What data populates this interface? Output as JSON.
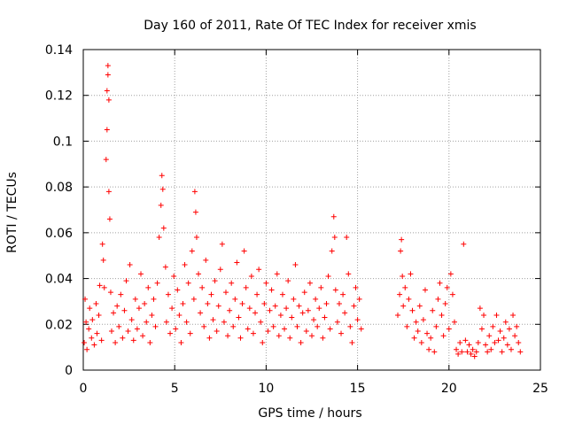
{
  "chart_data": {
    "type": "scatter",
    "title": "Day 160 of 2011, Rate Of TEC Index for receiver xmis",
    "xlabel": "GPS time / hours",
    "ylabel": "ROTI / TECUs",
    "xlim": [
      0,
      25
    ],
    "ylim": [
      0,
      0.14
    ],
    "x_ticks": [
      0,
      5,
      10,
      15,
      20,
      25
    ],
    "x_tick_labels": [
      "0",
      "5",
      "10",
      "15",
      "20",
      "25"
    ],
    "y_ticks": [
      0,
      0.02,
      0.04,
      0.06,
      0.08,
      0.1,
      0.12,
      0.14
    ],
    "y_tick_labels": [
      "0",
      "0.02",
      "0.04",
      "0.06",
      "0.08",
      "0.1",
      "0.12",
      "0.14"
    ],
    "grid": true,
    "marker": "+",
    "color": "#ff0000",
    "series": [
      {
        "points": [
          [
            0.05,
            0.012
          ],
          [
            0.1,
            0.031
          ],
          [
            0.15,
            0.021
          ],
          [
            0.2,
            0.009
          ],
          [
            0.3,
            0.018
          ],
          [
            0.35,
            0.027
          ],
          [
            0.45,
            0.014
          ],
          [
            0.5,
            0.022
          ],
          [
            0.6,
            0.011
          ],
          [
            0.7,
            0.029
          ],
          [
            0.75,
            0.016
          ],
          [
            0.85,
            0.024
          ],
          [
            0.9,
            0.037
          ],
          [
            1.0,
            0.013
          ],
          [
            1.05,
            0.055
          ],
          [
            1.1,
            0.048
          ],
          [
            1.15,
            0.036
          ],
          [
            1.25,
            0.092
          ],
          [
            1.3,
            0.105
          ],
          [
            1.3,
            0.122
          ],
          [
            1.35,
            0.133
          ],
          [
            1.35,
            0.129
          ],
          [
            1.4,
            0.118
          ],
          [
            1.4,
            0.078
          ],
          [
            1.45,
            0.066
          ],
          [
            1.5,
            0.034
          ],
          [
            1.55,
            0.017
          ],
          [
            1.65,
            0.025
          ],
          [
            1.75,
            0.012
          ],
          [
            1.85,
            0.028
          ],
          [
            1.95,
            0.019
          ],
          [
            2.05,
            0.033
          ],
          [
            2.15,
            0.014
          ],
          [
            2.25,
            0.026
          ],
          [
            2.35,
            0.039
          ],
          [
            2.45,
            0.017
          ],
          [
            2.55,
            0.046
          ],
          [
            2.65,
            0.022
          ],
          [
            2.75,
            0.013
          ],
          [
            2.85,
            0.031
          ],
          [
            2.95,
            0.018
          ],
          [
            3.05,
            0.027
          ],
          [
            3.15,
            0.042
          ],
          [
            3.25,
            0.015
          ],
          [
            3.35,
            0.029
          ],
          [
            3.45,
            0.021
          ],
          [
            3.55,
            0.036
          ],
          [
            3.65,
            0.012
          ],
          [
            3.75,
            0.024
          ],
          [
            3.85,
            0.031
          ],
          [
            3.95,
            0.019
          ],
          [
            4.05,
            0.038
          ],
          [
            4.15,
            0.058
          ],
          [
            4.25,
            0.072
          ],
          [
            4.3,
            0.085
          ],
          [
            4.35,
            0.079
          ],
          [
            4.4,
            0.062
          ],
          [
            4.5,
            0.045
          ],
          [
            4.55,
            0.021
          ],
          [
            4.65,
            0.033
          ],
          [
            4.75,
            0.016
          ],
          [
            4.85,
            0.027
          ],
          [
            4.95,
            0.041
          ],
          [
            5.05,
            0.018
          ],
          [
            5.15,
            0.035
          ],
          [
            5.25,
            0.024
          ],
          [
            5.35,
            0.012
          ],
          [
            5.45,
            0.029
          ],
          [
            5.55,
            0.046
          ],
          [
            5.65,
            0.021
          ],
          [
            5.75,
            0.038
          ],
          [
            5.85,
            0.016
          ],
          [
            5.95,
            0.052
          ],
          [
            6.05,
            0.031
          ],
          [
            6.1,
            0.078
          ],
          [
            6.15,
            0.069
          ],
          [
            6.2,
            0.058
          ],
          [
            6.3,
            0.042
          ],
          [
            6.4,
            0.025
          ],
          [
            6.5,
            0.036
          ],
          [
            6.6,
            0.019
          ],
          [
            6.7,
            0.048
          ],
          [
            6.8,
            0.029
          ],
          [
            6.9,
            0.014
          ],
          [
            7.0,
            0.033
          ],
          [
            7.1,
            0.022
          ],
          [
            7.2,
            0.039
          ],
          [
            7.3,
            0.017
          ],
          [
            7.4,
            0.028
          ],
          [
            7.5,
            0.044
          ],
          [
            7.6,
            0.055
          ],
          [
            7.7,
            0.021
          ],
          [
            7.8,
            0.034
          ],
          [
            7.9,
            0.015
          ],
          [
            8.0,
            0.026
          ],
          [
            8.1,
            0.038
          ],
          [
            8.2,
            0.019
          ],
          [
            8.3,
            0.031
          ],
          [
            8.4,
            0.047
          ],
          [
            8.5,
            0.023
          ],
          [
            8.6,
            0.014
          ],
          [
            8.7,
            0.029
          ],
          [
            8.8,
            0.052
          ],
          [
            8.9,
            0.036
          ],
          [
            9.0,
            0.018
          ],
          [
            9.1,
            0.027
          ],
          [
            9.2,
            0.041
          ],
          [
            9.3,
            0.016
          ],
          [
            9.4,
            0.025
          ],
          [
            9.5,
            0.033
          ],
          [
            9.6,
            0.044
          ],
          [
            9.7,
            0.021
          ],
          [
            9.8,
            0.012
          ],
          [
            9.9,
            0.029
          ],
          [
            10.0,
            0.038
          ],
          [
            10.1,
            0.017
          ],
          [
            10.2,
            0.026
          ],
          [
            10.3,
            0.035
          ],
          [
            10.4,
            0.019
          ],
          [
            10.5,
            0.028
          ],
          [
            10.6,
            0.042
          ],
          [
            10.7,
            0.015
          ],
          [
            10.8,
            0.024
          ],
          [
            10.9,
            0.033
          ],
          [
            11.0,
            0.018
          ],
          [
            11.1,
            0.027
          ],
          [
            11.2,
            0.039
          ],
          [
            11.3,
            0.014
          ],
          [
            11.4,
            0.023
          ],
          [
            11.5,
            0.031
          ],
          [
            11.6,
            0.046
          ],
          [
            11.7,
            0.019
          ],
          [
            11.8,
            0.028
          ],
          [
            11.9,
            0.012
          ],
          [
            12.0,
            0.025
          ],
          [
            12.1,
            0.034
          ],
          [
            12.2,
            0.017
          ],
          [
            12.3,
            0.026
          ],
          [
            12.4,
            0.038
          ],
          [
            12.5,
            0.015
          ],
          [
            12.6,
            0.022
          ],
          [
            12.7,
            0.031
          ],
          [
            12.8,
            0.019
          ],
          [
            12.9,
            0.027
          ],
          [
            13.0,
            0.036
          ],
          [
            13.1,
            0.014
          ],
          [
            13.2,
            0.023
          ],
          [
            13.3,
            0.029
          ],
          [
            13.4,
            0.041
          ],
          [
            13.5,
            0.018
          ],
          [
            13.6,
            0.052
          ],
          [
            13.7,
            0.067
          ],
          [
            13.75,
            0.058
          ],
          [
            13.8,
            0.035
          ],
          [
            13.9,
            0.021
          ],
          [
            14.0,
            0.029
          ],
          [
            14.1,
            0.016
          ],
          [
            14.2,
            0.033
          ],
          [
            14.3,
            0.025
          ],
          [
            14.4,
            0.058
          ],
          [
            14.5,
            0.042
          ],
          [
            14.6,
            0.019
          ],
          [
            14.7,
            0.012
          ],
          [
            14.8,
            0.028
          ],
          [
            14.9,
            0.036
          ],
          [
            15.0,
            0.022
          ],
          [
            15.1,
            0.031
          ],
          [
            15.2,
            0.018
          ],
          [
            17.2,
            0.024
          ],
          [
            17.3,
            0.033
          ],
          [
            17.35,
            0.052
          ],
          [
            17.4,
            0.057
          ],
          [
            17.45,
            0.041
          ],
          [
            17.5,
            0.028
          ],
          [
            17.6,
            0.036
          ],
          [
            17.7,
            0.019
          ],
          [
            17.8,
            0.031
          ],
          [
            17.9,
            0.042
          ],
          [
            18.0,
            0.026
          ],
          [
            18.1,
            0.014
          ],
          [
            18.2,
            0.021
          ],
          [
            18.3,
            0.017
          ],
          [
            18.4,
            0.028
          ],
          [
            18.5,
            0.012
          ],
          [
            18.6,
            0.022
          ],
          [
            18.7,
            0.035
          ],
          [
            18.8,
            0.016
          ],
          [
            18.9,
            0.009
          ],
          [
            19.0,
            0.014
          ],
          [
            19.1,
            0.026
          ],
          [
            19.2,
            0.008
          ],
          [
            19.3,
            0.019
          ],
          [
            19.4,
            0.031
          ],
          [
            19.5,
            0.038
          ],
          [
            19.6,
            0.024
          ],
          [
            19.7,
            0.015
          ],
          [
            19.8,
            0.029
          ],
          [
            19.9,
            0.036
          ],
          [
            20.0,
            0.018
          ],
          [
            20.1,
            0.042
          ],
          [
            20.2,
            0.033
          ],
          [
            20.3,
            0.021
          ],
          [
            20.4,
            0.009
          ],
          [
            20.5,
            0.007
          ],
          [
            20.6,
            0.012
          ],
          [
            20.7,
            0.008
          ],
          [
            20.8,
            0.055
          ],
          [
            20.9,
            0.013
          ],
          [
            21.0,
            0.008
          ],
          [
            21.1,
            0.011
          ],
          [
            21.2,
            0.007
          ],
          [
            21.3,
            0.009
          ],
          [
            21.4,
            0.006
          ],
          [
            21.5,
            0.008
          ],
          [
            21.6,
            0.012
          ],
          [
            21.7,
            0.027
          ],
          [
            21.8,
            0.018
          ],
          [
            21.9,
            0.024
          ],
          [
            22.0,
            0.011
          ],
          [
            22.1,
            0.008
          ],
          [
            22.2,
            0.015
          ],
          [
            22.3,
            0.009
          ],
          [
            22.4,
            0.019
          ],
          [
            22.5,
            0.012
          ],
          [
            22.6,
            0.024
          ],
          [
            22.7,
            0.013
          ],
          [
            22.8,
            0.017
          ],
          [
            22.9,
            0.008
          ],
          [
            23.0,
            0.014
          ],
          [
            23.1,
            0.021
          ],
          [
            23.2,
            0.011
          ],
          [
            23.3,
            0.018
          ],
          [
            23.4,
            0.009
          ],
          [
            23.5,
            0.024
          ],
          [
            23.6,
            0.015
          ],
          [
            23.7,
            0.019
          ],
          [
            23.8,
            0.012
          ],
          [
            23.9,
            0.008
          ]
        ]
      }
    ]
  }
}
